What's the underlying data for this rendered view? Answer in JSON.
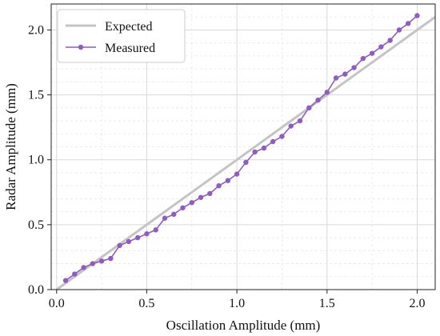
{
  "chart_data": {
    "type": "line",
    "xlabel": "Oscillation Amplitude (mm)",
    "ylabel": "Radar Amplitude (mm)",
    "xlim": [
      -0.03,
      2.1
    ],
    "ylim": [
      0.0,
      2.2
    ],
    "x_ticks": [
      "0.0",
      "0.5",
      "1.0",
      "1.5",
      "2.0"
    ],
    "y_ticks": [
      "0.0",
      "0.5",
      "1.0",
      "1.5",
      "2.0"
    ],
    "grid": true,
    "legend_position": "top-left",
    "series": [
      {
        "name": "Expected",
        "color": "#c4c4c4",
        "marker": "none",
        "x": [
          0.0,
          2.1
        ],
        "y": [
          0.0,
          2.1
        ]
      },
      {
        "name": "Measured",
        "color": "#8f5cc2",
        "marker": "circle",
        "x": [
          0.05,
          0.1,
          0.15,
          0.2,
          0.25,
          0.3,
          0.35,
          0.4,
          0.45,
          0.5,
          0.55,
          0.6,
          0.65,
          0.7,
          0.75,
          0.8,
          0.85,
          0.9,
          0.95,
          1.0,
          1.05,
          1.1,
          1.15,
          1.2,
          1.25,
          1.3,
          1.35,
          1.4,
          1.45,
          1.5,
          1.55,
          1.6,
          1.65,
          1.7,
          1.75,
          1.8,
          1.85,
          1.9,
          1.95,
          2.0
        ],
        "y": [
          0.07,
          0.12,
          0.17,
          0.2,
          0.22,
          0.24,
          0.34,
          0.37,
          0.4,
          0.43,
          0.46,
          0.55,
          0.58,
          0.63,
          0.67,
          0.71,
          0.74,
          0.8,
          0.84,
          0.89,
          0.98,
          1.06,
          1.09,
          1.14,
          1.18,
          1.26,
          1.3,
          1.4,
          1.46,
          1.52,
          1.63,
          1.66,
          1.71,
          1.78,
          1.82,
          1.87,
          1.92,
          2.0,
          2.05,
          2.11
        ]
      }
    ]
  }
}
